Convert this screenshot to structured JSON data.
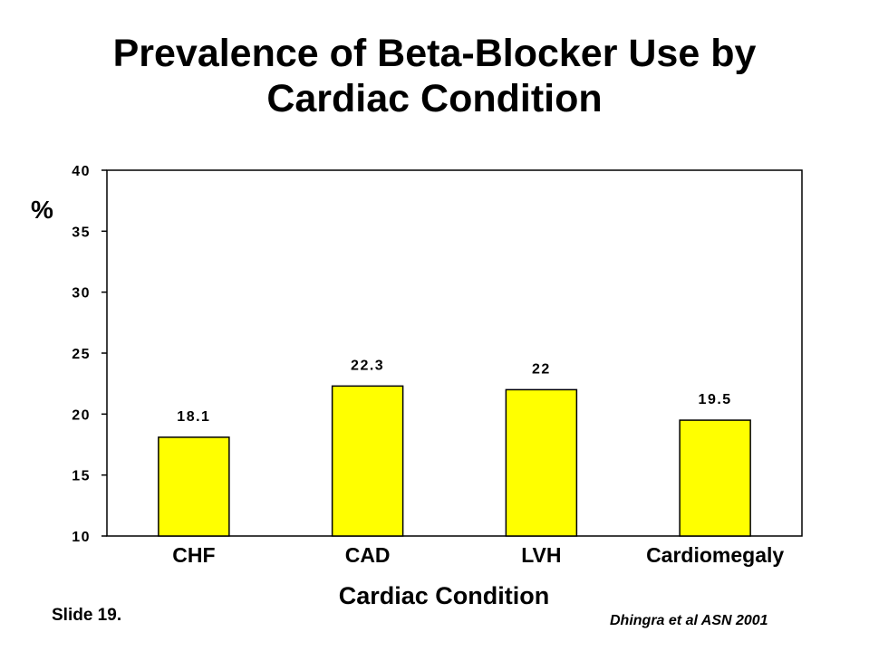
{
  "title_line1": "Prevalence of Beta-Blocker Use by",
  "title_line2": "Cardiac Condition",
  "slide_label": "Slide 19.",
  "citation": "Dhingra et al ASN 2001",
  "chart_data": {
    "type": "bar",
    "title": "Prevalence of Beta-Blocker Use by Cardiac Condition",
    "xlabel": "Cardiac Condition",
    "ylabel": "%",
    "categories": [
      "CHF",
      "CAD",
      "LVH",
      "Cardiomegaly"
    ],
    "values": [
      18.1,
      22.3,
      22,
      19.5
    ],
    "value_labels": [
      "18.1",
      "22.3",
      "22",
      "19.5"
    ],
    "ylim": [
      10,
      40
    ],
    "yticks": [
      10,
      15,
      20,
      25,
      30,
      35,
      40
    ],
    "grid": false,
    "bar_color": "#FFFF00"
  }
}
